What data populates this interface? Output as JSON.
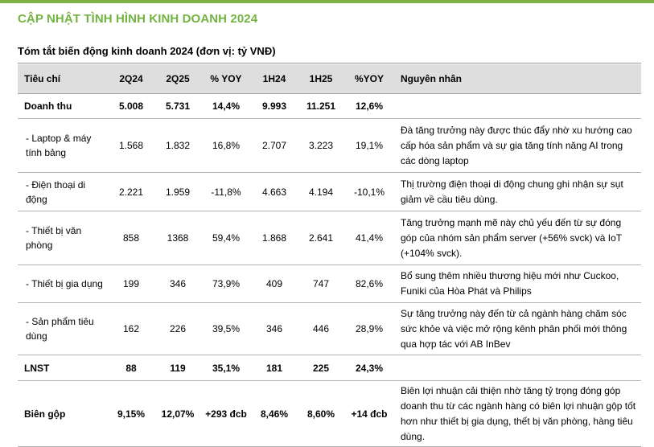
{
  "title": "CẬP NHẬT TÌNH HÌNH KINH DOANH 2024",
  "subtitle": "Tóm tắt biến động kinh doanh 2024 (đơn vị: tỷ VNĐ)",
  "table": {
    "headers": [
      "Tiêu chí",
      "2Q24",
      "2Q25",
      "% YOY",
      "1H24",
      "1H25",
      "%YOY",
      "Nguyên nhân"
    ],
    "rows": [
      {
        "cells": [
          "Doanh thu",
          "5.008",
          "5.731",
          "14,4%",
          "9.993",
          "11.251",
          "12,6%",
          ""
        ]
      },
      {
        "cells": [
          " - Laptop & máy tính bảng",
          "1.568",
          "1.832",
          "16,8%",
          "2.707",
          "3.223",
          "19,1%",
          "Đà tăng trưởng này được thúc đẩy nhờ xu hướng cao cấp hóa sản phẩm và sự gia tăng tính năng AI trong các dòng laptop"
        ]
      },
      {
        "cells": [
          " - Điện thoại di động",
          "2.221",
          "1.959",
          "-11,8%",
          "4.663",
          "4.194",
          "-10,1%",
          "Thị trường điện thoại di động chung ghi nhận sự sụt giảm về cầu tiêu dùng."
        ]
      },
      {
        "cells": [
          " - Thiết bị văn phòng",
          "858",
          "1368",
          "59,4%",
          "1.868",
          "2.641",
          "41,4%",
          "Tăng trưởng mạnh mẽ này chủ yếu đến từ sự đóng góp của nhóm sản phẩm server (+56% svck) và IoT (+104% svck)."
        ]
      },
      {
        "cells": [
          " - Thiết bị gia dụng",
          "199",
          "346",
          "73,9%",
          "409",
          "747",
          "82,6%",
          "Bổ sung thêm nhiều thương hiệu mới như Cuckoo, Funiki của Hòa Phát và Philips"
        ]
      },
      {
        "cells": [
          " - Sản phẩm tiêu dùng",
          "162",
          "226",
          "39,5%",
          "346",
          "446",
          "28,9%",
          "Sự tăng trưởng này đến từ cả ngành hàng chăm sóc sức khỏe và việc mở rộng kênh phân phối mới thông qua hợp tác với AB InBev"
        ]
      },
      {
        "cells": [
          "LNST",
          "88",
          "119",
          "35,1%",
          "181",
          "225",
          "24,3%",
          ""
        ]
      },
      {
        "cells": [
          "Biên gộp",
          "9,15%",
          "12,07%",
          "+293 đcb",
          "8,46%",
          "8,60%",
          "+14 đcb",
          "Biên lợi nhuận cải thiện nhờ tăng tỷ trọng đóng góp doanh thu từ các ngành hàng có biên lợi nhuận gộp tốt hơn như thiết bị gia dụng, thết bị văn phòng, hàng tiêu dùng."
        ]
      }
    ]
  }
}
